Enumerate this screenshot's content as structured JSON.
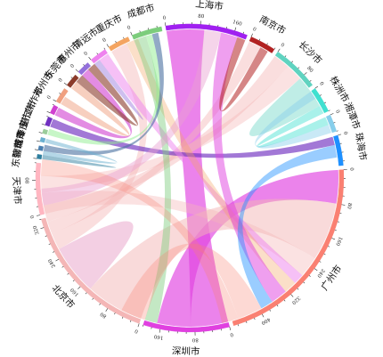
{
  "chart_data": {
    "type": "chord",
    "groups": [
      {
        "name": "深圳市",
        "value": 200,
        "color": "#e040e0",
        "ticks": [
          "0",
          "80",
          "160"
        ]
      },
      {
        "name": "北京市",
        "value": 340,
        "color": "#f4b6b6",
        "ticks": [
          "0",
          "80",
          "160",
          "240",
          "320"
        ]
      },
      {
        "name": "天津市",
        "value": 120,
        "color": "#ffb6c1",
        "ticks": [
          "0",
          "80"
        ]
      },
      {
        "name": "东营市",
        "value": 10,
        "color": "#2f7f9f",
        "ticks": []
      },
      {
        "name": "聊城市",
        "value": 10,
        "color": "#4a7fb0",
        "ticks": []
      },
      {
        "name": "菏泽市",
        "value": 10,
        "color": "#6ab0d0",
        "ticks": []
      },
      {
        "name": "枣庄市",
        "value": 10,
        "color": "#9acd9a",
        "ticks": []
      },
      {
        "name": "湛江市",
        "value": 20,
        "color": "#7030c0",
        "ticks": []
      },
      {
        "name": "焦作市",
        "value": 20,
        "color": "#d040d0",
        "ticks": []
      },
      {
        "name": "郑州市",
        "value": 35,
        "color": "#f0a080",
        "ticks": [
          "0"
        ]
      },
      {
        "name": "东莞市",
        "value": 30,
        "color": "#8b3a2a",
        "ticks": [
          "0"
        ]
      },
      {
        "name": "惠州市",
        "value": 30,
        "color": "#9370db",
        "ticks": [
          "0"
        ]
      },
      {
        "name": "清远市",
        "value": 40,
        "color": "#ee82ee",
        "ticks": [
          "0"
        ]
      },
      {
        "name": "重庆市",
        "value": 50,
        "color": "#f4a460",
        "ticks": [
          "0"
        ]
      },
      {
        "name": "成都市",
        "value": 70,
        "color": "#7ccd7c",
        "ticks": [
          "0"
        ]
      },
      {
        "name": "上海市",
        "value": 190,
        "color": "#a020f0",
        "ticks": [
          "0",
          "80",
          "160"
        ]
      },
      {
        "name": "南京市",
        "value": 60,
        "color": "#b22222",
        "ticks": [
          "0"
        ]
      },
      {
        "name": "长沙市",
        "value": 110,
        "color": "#5fd3c0",
        "ticks": [
          "0",
          "80"
        ]
      },
      {
        "name": "株洲市",
        "value": 60,
        "color": "#40e0d0",
        "ticks": [
          "0"
        ]
      },
      {
        "name": "湘潭市",
        "value": 40,
        "color": "#87ceeb",
        "ticks": [
          "0"
        ]
      },
      {
        "name": "珠海市",
        "value": 70,
        "color": "#1e90ff",
        "ticks": [
          "0"
        ]
      },
      {
        "name": "广州市",
        "value": 470,
        "color": "#fa8072",
        "ticks": [
          "0",
          "80",
          "160",
          "240",
          "320",
          "400"
        ]
      }
    ],
    "links": [
      {
        "source": "深圳市",
        "target": "上海市",
        "value": 90,
        "color": "#e040e0",
        "opacity": 0.65
      },
      {
        "source": "深圳市",
        "target": "广州市",
        "value": 80,
        "color": "#e040e0",
        "opacity": 0.65
      },
      {
        "source": "北京市",
        "target": "广州市",
        "value": 140,
        "color": "#f4b6b6",
        "opacity": 0.5
      },
      {
        "source": "北京市",
        "target": "北京市",
        "value": 60,
        "color": "#e8a0c8",
        "opacity": 0.5
      },
      {
        "source": "北京市",
        "target": "重庆市",
        "value": 40,
        "color": "#f4b6b6",
        "opacity": 0.45
      },
      {
        "source": "北京市",
        "target": "南京市",
        "value": 30,
        "color": "#f4b6b6",
        "opacity": 0.45
      },
      {
        "source": "北京市",
        "target": "长沙市",
        "value": 40,
        "color": "#f4b6b6",
        "opacity": 0.45
      },
      {
        "source": "天津市",
        "target": "广州市",
        "value": 50,
        "color": "#f4b6b6",
        "opacity": 0.4
      },
      {
        "source": "天津市",
        "target": "长沙市",
        "value": 40,
        "color": "#f4b6b6",
        "opacity": 0.4
      },
      {
        "source": "湛江市",
        "target": "珠海市",
        "value": 20,
        "color": "#7030c0",
        "opacity": 0.65
      },
      {
        "source": "焦作市",
        "target": "惠州市",
        "value": 20,
        "color": "#d040d0",
        "opacity": 0.6
      },
      {
        "source": "郑州市",
        "target": "东莞市",
        "value": 20,
        "color": "#f0a080",
        "opacity": 0.5
      },
      {
        "source": "东莞市",
        "target": "惠州市",
        "value": 20,
        "color": "#8b3a2a",
        "opacity": 0.6
      },
      {
        "source": "惠州市",
        "target": "清远市",
        "value": 15,
        "color": "#9370db",
        "opacity": 0.45
      },
      {
        "source": "清远市",
        "target": "广州市",
        "value": 25,
        "color": "#ee82ee",
        "opacity": 0.5
      },
      {
        "source": "重庆市",
        "target": "广州市",
        "value": 30,
        "color": "#f4a460",
        "opacity": 0.35
      },
      {
        "source": "成都市",
        "target": "深圳市",
        "value": 30,
        "color": "#7ccd7c",
        "opacity": 0.45
      },
      {
        "source": "成都市",
        "target": "枣庄市",
        "value": 15,
        "color": "#90ee90",
        "opacity": 0.5
      },
      {
        "source": "成都市",
        "target": "聊城市",
        "value": 15,
        "color": "#4a6fa0",
        "opacity": 0.6
      },
      {
        "source": "上海市",
        "target": "北京市",
        "value": 40,
        "color": "#e8a0d0",
        "opacity": 0.45
      },
      {
        "source": "上海市",
        "target": "广州市",
        "value": 40,
        "color": "#e040e0",
        "opacity": 0.5
      },
      {
        "source": "南京市",
        "target": "上海市",
        "value": 20,
        "color": "#b22222",
        "opacity": 0.55
      },
      {
        "source": "长沙市",
        "target": "株洲市",
        "value": 40,
        "color": "#5fd3c0",
        "opacity": 0.4
      },
      {
        "source": "株洲市",
        "target": "湘潭市",
        "value": 20,
        "color": "#40e0d0",
        "opacity": 0.45
      },
      {
        "source": "湘潭市",
        "target": "长沙市",
        "value": 20,
        "color": "#87ceeb",
        "opacity": 0.45
      },
      {
        "source": "珠海市",
        "target": "广州市",
        "value": 30,
        "color": "#1e90ff",
        "opacity": 0.45
      },
      {
        "source": "广州市",
        "target": "深圳市",
        "value": 60,
        "color": "#fa8072",
        "opacity": 0.3
      },
      {
        "source": "广州市",
        "target": "天津市",
        "value": 40,
        "color": "#fa8072",
        "opacity": 0.3
      },
      {
        "source": "东营市",
        "target": "天津市",
        "value": 10,
        "color": "#2f7f9f",
        "opacity": 0.5
      },
      {
        "source": "菏泽市",
        "target": "东营市",
        "value": 10,
        "color": "#6ab0d0",
        "opacity": 0.5
      }
    ]
  }
}
